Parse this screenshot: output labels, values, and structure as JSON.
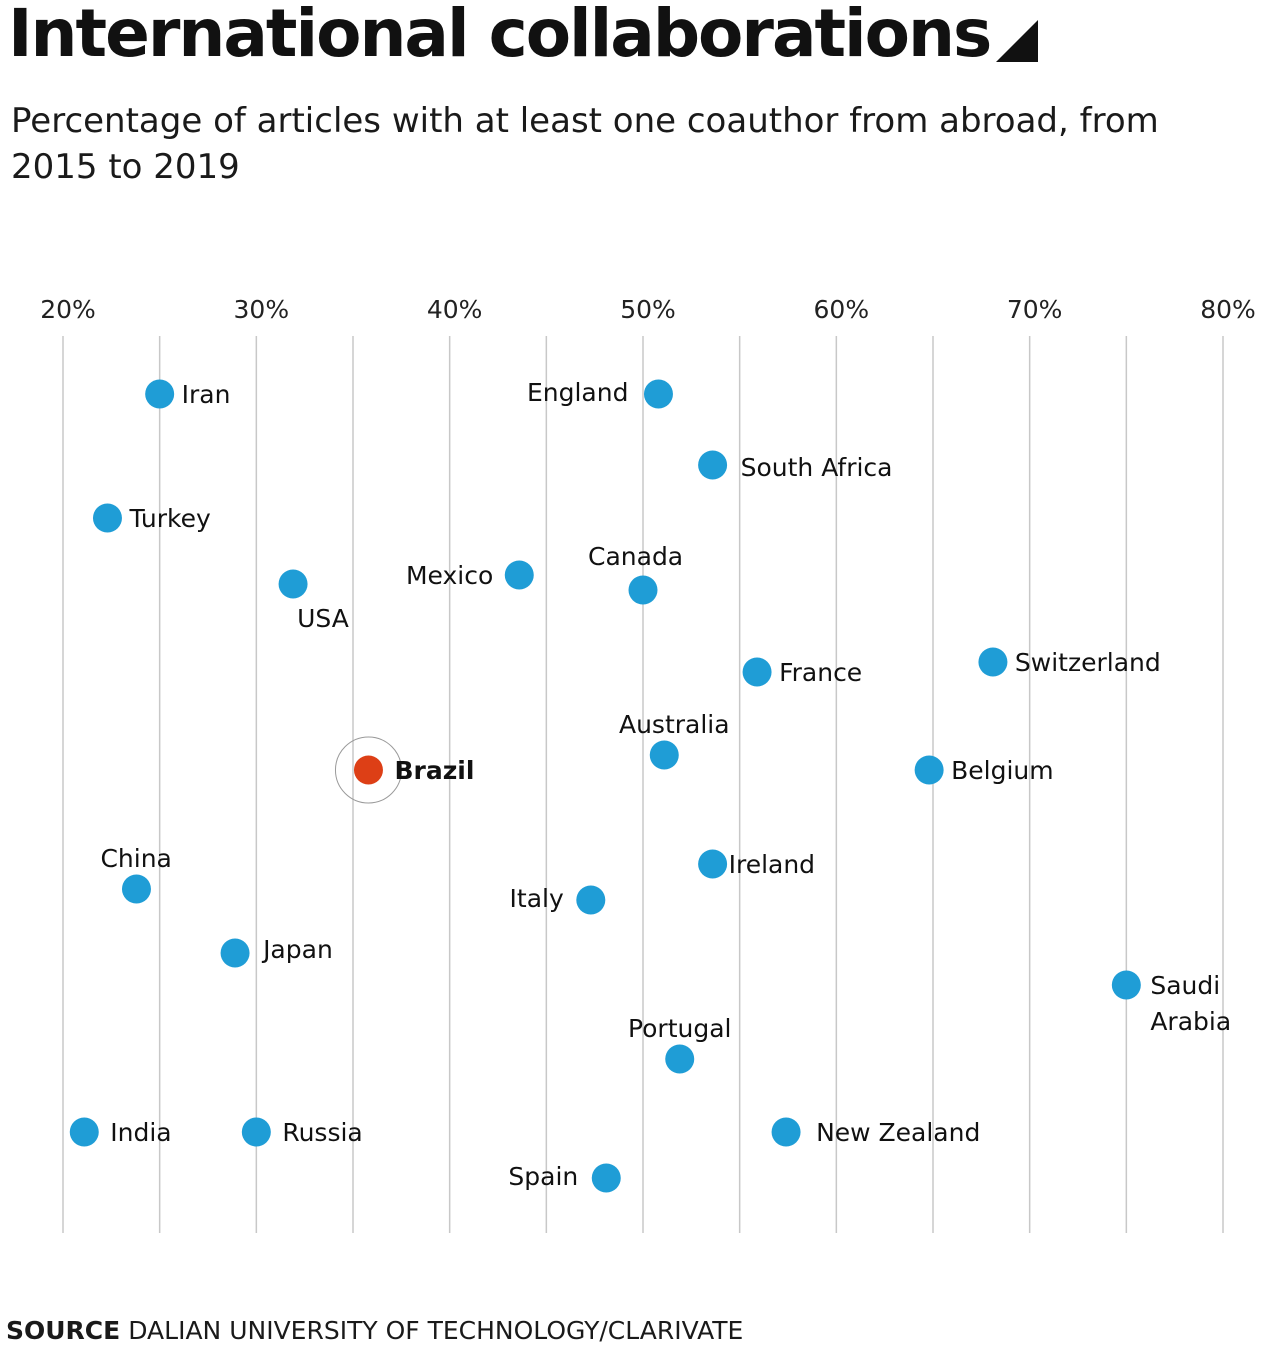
{
  "title": "International collaborations",
  "subtitle": "Percentage of articles with at least one coauthor from abroad, from 2015 to 2019",
  "source": {
    "key": "SOURCE",
    "text": "DALIAN UNIVERSITY OF TECHNOLOGY/CLARIVATE"
  },
  "colors": {
    "point": "#1f9dd6",
    "highlight": "#dd3f16",
    "grid": "#c8c8c8",
    "text": "#111111"
  },
  "chart_data": {
    "type": "scatter",
    "title": "International collaborations",
    "xlabel": "",
    "ylabel": "",
    "xlim": [
      20,
      80
    ],
    "x_ticks": [
      20,
      30,
      40,
      50,
      60,
      70,
      80
    ],
    "x_tick_labels": [
      "20%",
      "30%",
      "40%",
      "50%",
      "60%",
      "70%",
      "80%"
    ],
    "grid": true,
    "highlight": "Brazil",
    "points": [
      {
        "label": "Iran",
        "x": 25.0
      },
      {
        "label": "England",
        "x": 50.8
      },
      {
        "label": "South Africa",
        "x": 53.6
      },
      {
        "label": "Turkey",
        "x": 22.3
      },
      {
        "label": "Mexico",
        "x": 43.6
      },
      {
        "label": "Canada",
        "x": 50.0
      },
      {
        "label": "USA",
        "x": 31.9
      },
      {
        "label": "France",
        "x": 55.9
      },
      {
        "label": "Switzerland",
        "x": 68.1
      },
      {
        "label": "Australia",
        "x": 51.1
      },
      {
        "label": "Brazil",
        "x": 35.8
      },
      {
        "label": "Belgium",
        "x": 64.8
      },
      {
        "label": "Ireland",
        "x": 53.6
      },
      {
        "label": "China",
        "x": 23.8
      },
      {
        "label": "Italy",
        "x": 47.3
      },
      {
        "label": "Japan",
        "x": 28.9
      },
      {
        "label": "Saudi Arabia",
        "x": 75.0
      },
      {
        "label": "Portugal",
        "x": 51.9
      },
      {
        "label": "India",
        "x": 21.1
      },
      {
        "label": "Russia",
        "x": 30.0
      },
      {
        "label": "New Zealand",
        "x": 57.4
      },
      {
        "label": "Spain",
        "x": 48.1
      }
    ]
  }
}
